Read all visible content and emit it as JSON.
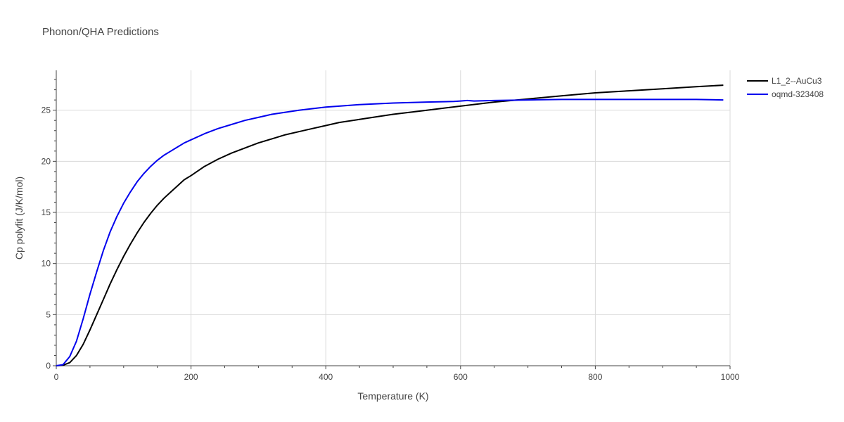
{
  "chart_data": {
    "type": "line",
    "title": "Phonon/QHA Predictions",
    "xlabel": "Temperature (K)",
    "ylabel": "Cp polyfit (J/K/mol)",
    "xlim": [
      0,
      1000
    ],
    "ylim": [
      0,
      28.9
    ],
    "xticks": [
      0,
      200,
      400,
      600,
      800,
      1000
    ],
    "yticks": [
      0,
      5,
      10,
      15,
      20,
      25
    ],
    "grid": true,
    "legend_position": "top-right",
    "series": [
      {
        "name": "L1_2--AuCu3",
        "color": "#000000",
        "x": [
          0,
          10,
          20,
          30,
          40,
          50,
          60,
          70,
          80,
          90,
          100,
          110,
          120,
          130,
          140,
          150,
          160,
          170,
          180,
          190,
          200,
          220,
          240,
          260,
          280,
          300,
          320,
          340,
          360,
          380,
          400,
          420,
          450,
          480,
          500,
          550,
          600,
          650,
          700,
          750,
          800,
          850,
          900,
          950,
          990
        ],
        "y": [
          0,
          0.05,
          0.3,
          1.0,
          2.1,
          3.5,
          5.0,
          6.5,
          8.0,
          9.4,
          10.7,
          11.9,
          13.0,
          14.0,
          14.9,
          15.7,
          16.4,
          17.0,
          17.6,
          18.2,
          18.6,
          19.5,
          20.2,
          20.8,
          21.3,
          21.8,
          22.2,
          22.6,
          22.9,
          23.2,
          23.5,
          23.8,
          24.1,
          24.4,
          24.6,
          25.0,
          25.4,
          25.8,
          26.1,
          26.4,
          26.7,
          26.9,
          27.1,
          27.3,
          27.45
        ]
      },
      {
        "name": "oqmd-323408",
        "color": "#0000ee",
        "x": [
          0,
          10,
          20,
          30,
          40,
          50,
          60,
          70,
          80,
          90,
          100,
          110,
          120,
          130,
          140,
          150,
          160,
          170,
          180,
          190,
          200,
          220,
          240,
          260,
          280,
          300,
          320,
          340,
          360,
          380,
          400,
          420,
          450,
          500,
          550,
          590,
          600,
          610,
          620,
          650,
          700,
          750,
          800,
          850,
          900,
          950,
          990
        ],
        "y": [
          0,
          0.1,
          0.9,
          2.4,
          4.6,
          7.0,
          9.2,
          11.3,
          13.1,
          14.6,
          15.9,
          17.0,
          18.0,
          18.8,
          19.5,
          20.1,
          20.6,
          21.0,
          21.4,
          21.8,
          22.1,
          22.7,
          23.2,
          23.6,
          24.0,
          24.3,
          24.6,
          24.8,
          25.0,
          25.15,
          25.3,
          25.4,
          25.55,
          25.7,
          25.8,
          25.85,
          25.9,
          25.95,
          25.9,
          25.95,
          26.0,
          26.05,
          26.05,
          26.05,
          26.05,
          26.05,
          26.0
        ]
      }
    ]
  }
}
